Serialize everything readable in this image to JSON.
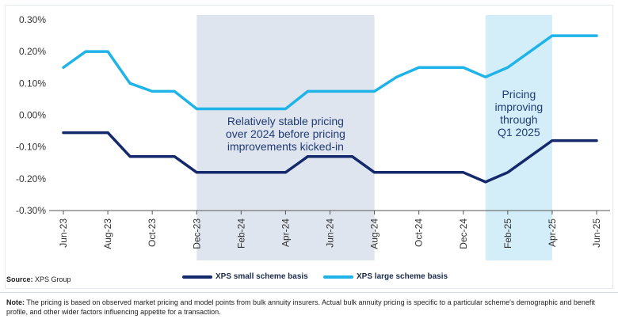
{
  "chart_data": {
    "type": "line",
    "title": "",
    "xlabel": "",
    "ylabel": "",
    "ylim": [
      -0.3,
      0.3
    ],
    "y_ticks": [
      "0.30%",
      "0.20%",
      "0.10%",
      "0.00%",
      "-0.10%",
      "-0.20%",
      "-0.30%"
    ],
    "y_tick_values": [
      0.3,
      0.2,
      0.1,
      0.0,
      -0.1,
      -0.2,
      -0.3
    ],
    "x": [
      "Jun-23",
      "Jul-23",
      "Aug-23",
      "Sep-23",
      "Oct-23",
      "Nov-23",
      "Dec-23",
      "Jan-24",
      "Feb-24",
      "Mar-24",
      "Apr-24",
      "May-24",
      "Jun-24",
      "Jul-24",
      "Aug-24",
      "Sep-24",
      "Oct-24",
      "Nov-24",
      "Dec-24",
      "Jan-25",
      "Feb-25",
      "Mar-25",
      "Apr-25",
      "May-25",
      "Jun-25"
    ],
    "x_tick_labels": [
      "Jun-23",
      "Aug-23",
      "Oct-23",
      "Dec-23",
      "Feb-24",
      "Apr-24",
      "Jun-24",
      "Aug-24",
      "Oct-24",
      "Dec-24",
      "Feb-25",
      "Apr-25",
      "Jun-25"
    ],
    "x_tick_indices": [
      0,
      2,
      4,
      6,
      8,
      10,
      12,
      14,
      16,
      18,
      20,
      22,
      24
    ],
    "series": [
      {
        "name": "XPS small scheme basis",
        "color": "#13296b",
        "values": [
          -0.055,
          -0.055,
          -0.055,
          -0.13,
          -0.13,
          -0.13,
          -0.18,
          -0.18,
          -0.18,
          -0.18,
          -0.18,
          -0.13,
          -0.13,
          -0.13,
          -0.18,
          -0.18,
          -0.18,
          -0.18,
          -0.18,
          -0.21,
          -0.18,
          -0.13,
          -0.08,
          -0.08,
          -0.08
        ]
      },
      {
        "name": "XPS large scheme basis",
        "color": "#1fb3e8",
        "values": [
          0.15,
          0.2,
          0.2,
          0.1,
          0.075,
          0.075,
          0.02,
          0.02,
          0.02,
          0.02,
          0.02,
          0.075,
          0.075,
          0.075,
          0.075,
          0.12,
          0.15,
          0.15,
          0.15,
          0.12,
          0.15,
          0.2,
          0.25,
          0.25,
          0.25
        ]
      }
    ],
    "shaded_regions": [
      {
        "from": "Dec-23",
        "to": "Aug-24",
        "color": "#dfe5ef",
        "lines": [
          "Relatively stable pricing",
          "over 2024 before pricing",
          "improvements kicked-in"
        ]
      },
      {
        "from": "Jan-25",
        "to": "Apr-25",
        "color": "#d4eef9",
        "lines": [
          "Pricing",
          "improving",
          "through",
          "Q1 2025"
        ]
      }
    ],
    "grid": false,
    "legend_position": "bottom"
  },
  "source": {
    "label": "Source:",
    "text": " XPS Group"
  },
  "legend": [
    {
      "label": "XPS small scheme basis",
      "color": "#13296b"
    },
    {
      "label": "XPS large scheme basis",
      "color": "#1fb3e8"
    }
  ],
  "note": {
    "label": "Note:",
    "text": " The pricing is based on observed market pricing and model points from bulk annuity insurers. Actual bulk annuity pricing is specific to a particular scheme's demographic and benefit profile, and other wider factors influencing appetite for a transaction."
  }
}
